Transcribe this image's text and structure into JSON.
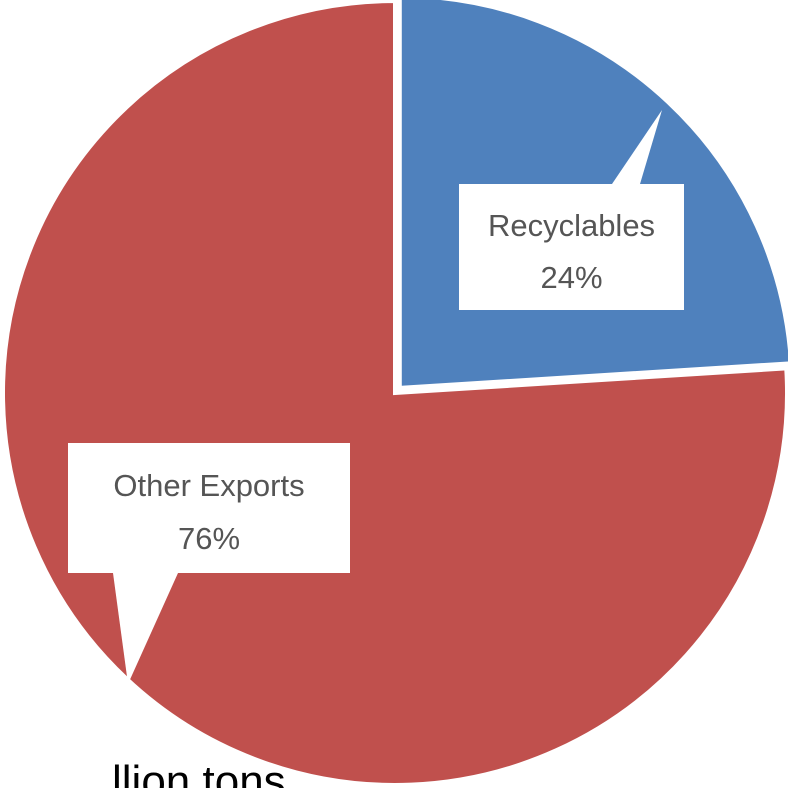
{
  "chart_data": {
    "type": "pie",
    "slices": [
      {
        "label": "Recyclables",
        "percent_label": "24%",
        "value": 24,
        "color": "#4f81bd"
      },
      {
        "label": "Other Exports",
        "percent_label": "76%",
        "value": 76,
        "color": "#c0504d"
      }
    ],
    "start_angle_deg": 0,
    "direction": "clockwise",
    "exploded_slice": "Recyclables",
    "label_style": "callout"
  },
  "cutoff_text": "llion tons"
}
